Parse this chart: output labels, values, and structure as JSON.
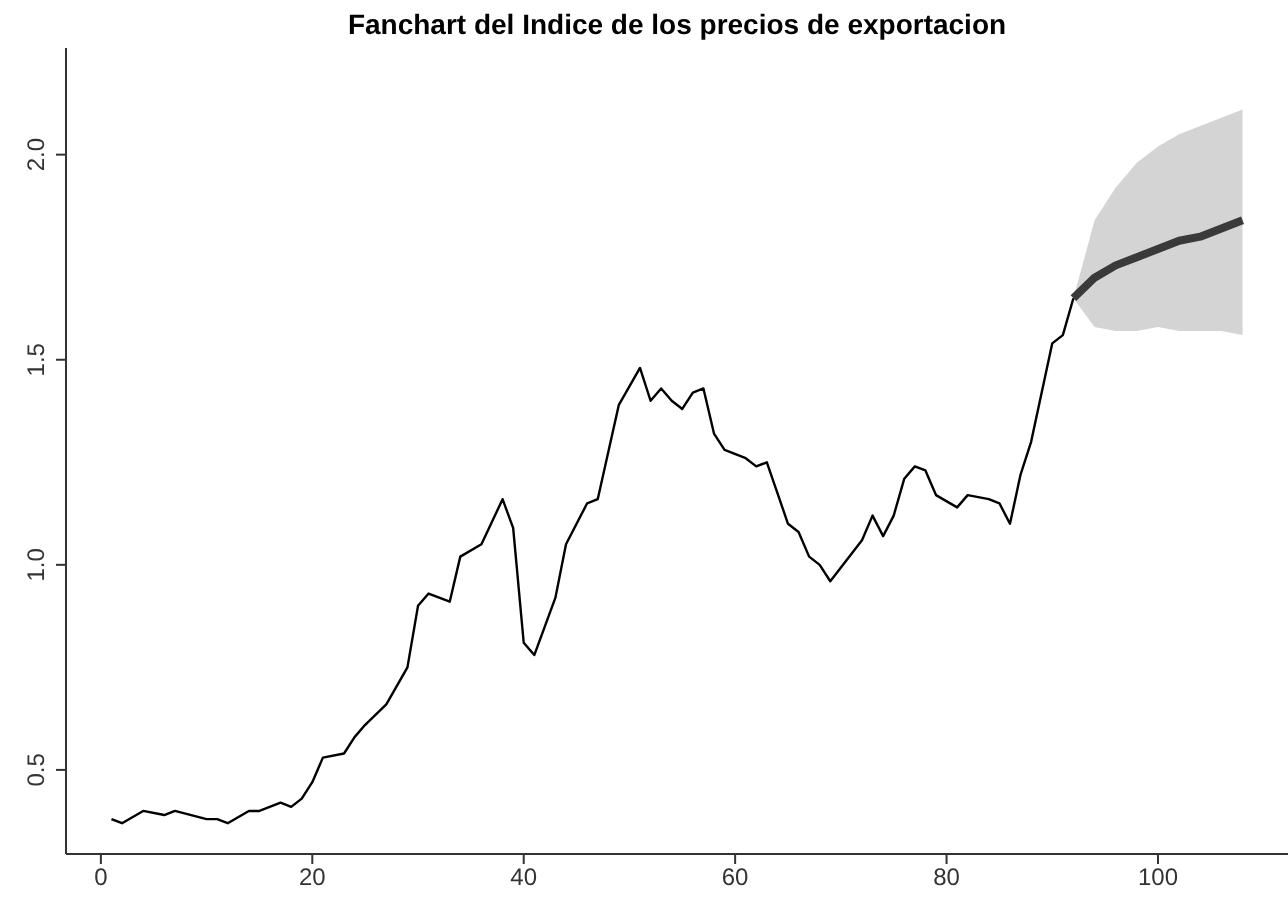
{
  "chart_data": {
    "type": "line",
    "title": "Fanchart del Indice de los precios de exportacion",
    "xlim": [
      -3.3,
      112.3
    ],
    "xticks": [
      0,
      20,
      40,
      60,
      80,
      100
    ],
    "ylim": [
      0.295,
      2.26
    ],
    "yticks": [
      {
        "value": 0.5,
        "label": "0.5"
      },
      {
        "value": 1,
        "label": "1.0"
      },
      {
        "value": 1.5,
        "label": "1.5"
      },
      {
        "value": 2,
        "label": "2.0"
      }
    ],
    "grid": false,
    "legend": false,
    "series": [
      {
        "color": "#3a3a3a",
        "x": [
          92,
          94,
          96,
          98,
          100,
          102,
          104,
          106,
          108
        ],
        "values": [
          1.65,
          1.7,
          1.73,
          1.75,
          1.77,
          1.79,
          1.8,
          1.82,
          1.84
        ],
        "lower": [
          1.65,
          1.58,
          1.57,
          1.57,
          1.58,
          1.57,
          1.57,
          1.57,
          1.56
        ],
        "upper": [
          1.65,
          1.84,
          1.92,
          1.98,
          2.02,
          2.05,
          2.07,
          2.09,
          2.11
        ]
      },
      {
        "color": "#000000",
        "x": [
          1,
          2,
          4,
          6,
          7,
          10,
          11,
          12,
          14,
          15,
          17,
          18,
          19,
          20,
          21,
          23,
          24,
          25,
          27,
          29,
          30,
          31,
          33,
          34,
          36,
          38,
          39,
          40,
          41,
          43,
          44,
          46,
          47,
          49,
          51,
          52,
          53,
          54,
          55,
          56,
          57,
          58,
          59,
          61,
          62,
          63,
          65,
          66,
          67,
          68,
          69,
          72,
          73,
          74,
          75,
          76,
          77,
          78,
          79,
          81,
          82,
          84,
          85,
          86,
          87,
          88,
          90,
          91,
          92
        ],
        "values": [
          0.38,
          0.37,
          0.4,
          0.39,
          0.4,
          0.38,
          0.38,
          0.37,
          0.4,
          0.4,
          0.42,
          0.41,
          0.43,
          0.47,
          0.53,
          0.54,
          0.58,
          0.61,
          0.66,
          0.75,
          0.9,
          0.93,
          0.91,
          1.02,
          1.05,
          1.16,
          1.09,
          0.81,
          0.78,
          0.92,
          1.05,
          1.15,
          1.16,
          1.39,
          1.48,
          1.4,
          1.43,
          1.4,
          1.38,
          1.42,
          1.43,
          1.32,
          1.28,
          1.26,
          1.24,
          1.25,
          1.1,
          1.08,
          1.02,
          1.0,
          0.96,
          1.06,
          1.12,
          1.07,
          1.12,
          1.21,
          1.24,
          1.23,
          1.17,
          1.14,
          1.17,
          1.16,
          1.15,
          1.1,
          1.22,
          1.3,
          1.54,
          1.56,
          1.65
        ]
      }
    ]
  }
}
